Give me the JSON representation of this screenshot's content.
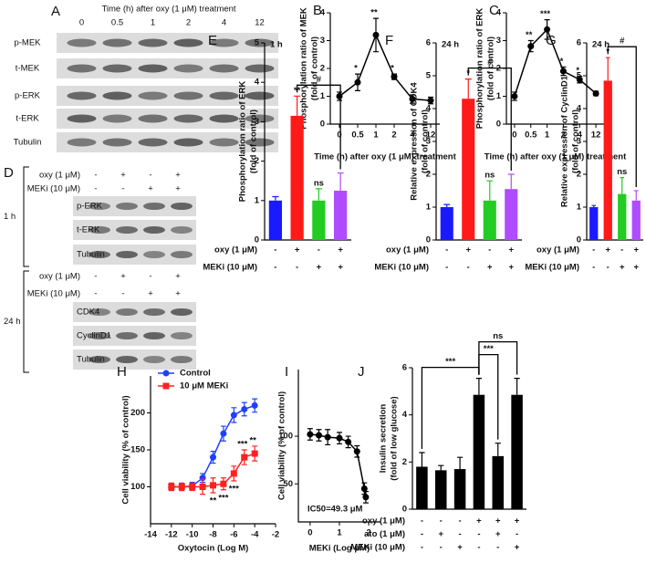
{
  "blots": [
    {
      "panel": "A",
      "header": "Time (h) after oxy (1 μM) treatment",
      "lanes": [
        "0",
        "0.5",
        "1",
        "2",
        "4",
        "12"
      ],
      "rows": [
        "p-MEK",
        "t-MEK",
        "p-ERK",
        "t-ERK",
        "Tubulin"
      ]
    },
    {
      "panel": "D",
      "sections": [
        {
          "time": "1 h",
          "treatments": [
            {
              "name": "oxy (1 μM)",
              "signs": [
                "-",
                "+",
                "-",
                "+"
              ]
            },
            {
              "name": "MEKi (10 μM)",
              "signs": [
                "-",
                "-",
                "+",
                "+"
              ]
            }
          ],
          "bands": [
            "p-ERK",
            "t-ERK",
            "Tubulin"
          ]
        },
        {
          "time": "24 h",
          "treatments": [
            {
              "name": "oxy (1 μM)",
              "signs": [
                "-",
                "+",
                "-",
                "+"
              ]
            },
            {
              "name": "MEKi (10 μM)",
              "signs": [
                "-",
                "-",
                "+",
                "+"
              ]
            }
          ],
          "bands": [
            "CDK4",
            "CyclinD1",
            "Tubulin"
          ]
        }
      ]
    }
  ],
  "chart_data": [
    {
      "panel": "B",
      "type": "line",
      "categories": [
        "0",
        "0.5",
        "1",
        "2",
        "4",
        "12"
      ],
      "values": [
        1,
        1.5,
        3.2,
        1.7,
        0.9,
        0.85
      ],
      "errors": [
        0.15,
        0.3,
        0.6,
        0.1,
        0.15,
        0.12
      ],
      "annotations": [
        null,
        "*",
        "**",
        "*",
        null,
        null
      ],
      "color": "#000000",
      "ylim": [
        0,
        4
      ],
      "yticks": [
        0,
        1,
        2,
        3,
        4
      ],
      "xlabel": "Time (h) after oxy (1 μM) treatment",
      "ylabel": [
        "Phosphorylation ratio of MEK",
        "(fold of control)"
      ]
    },
    {
      "panel": "C",
      "type": "line",
      "categories": [
        "0",
        "0.5",
        "1",
        "2",
        "4",
        "12"
      ],
      "values": [
        1,
        2.8,
        3.4,
        1.9,
        1.6,
        1.1
      ],
      "errors": [
        0.15,
        0.2,
        0.35,
        0.15,
        0.12,
        0.08
      ],
      "annotations": [
        null,
        "**",
        "***",
        "*",
        "*",
        null
      ],
      "color": "#000000",
      "ylim": [
        0,
        4
      ],
      "yticks": [
        0,
        1,
        2,
        3,
        4
      ],
      "xlabel": "Time (h) after oxy (1 μM) treatment",
      "ylabel": [
        "Phosphorylation ratio of ERK",
        "(fold of control)"
      ]
    },
    {
      "panel": "E",
      "type": "bar",
      "label": "1 h",
      "values": [
        1,
        3.15,
        1,
        1.25
      ],
      "errors": [
        0.1,
        0.5,
        0.3,
        0.45
      ],
      "colors": [
        "#1a1aff",
        "#ff1a1a",
        "#22cc22",
        "#b04cff"
      ],
      "annotations": [
        null,
        "**",
        "ns",
        null
      ],
      "brackets": [
        {
          "from": 1,
          "to": 3,
          "label": "#"
        }
      ],
      "treatments": [
        {
          "name": "oxy (1 μM)",
          "signs": [
            "-",
            "+",
            "-",
            "+"
          ]
        },
        {
          "name": "MEKi (10 μM)",
          "signs": [
            "-",
            "-",
            "+",
            "+"
          ]
        }
      ],
      "ylim": [
        0,
        5
      ],
      "yticks": [
        0,
        1,
        2,
        3,
        4,
        5
      ],
      "ylabel": [
        "Phosphorylation ratio of ERK",
        "(fold of control)"
      ]
    },
    {
      "panel": "F",
      "type": "bar",
      "label": "24 h",
      "values": [
        1,
        4.3,
        1.2,
        1.55
      ],
      "errors": [
        0.08,
        0.6,
        0.6,
        0.45
      ],
      "colors": [
        "#1a1aff",
        "#ff1a1a",
        "#22cc22",
        "#b04cff"
      ],
      "annotations": [
        null,
        "*",
        "ns",
        null
      ],
      "brackets": [
        {
          "from": 1,
          "to": 3,
          "label": "#"
        }
      ],
      "treatments": [
        {
          "name": "oxy (1 μM)",
          "signs": [
            "-",
            "+",
            "-",
            "+"
          ]
        },
        {
          "name": "MEKi (10 μM)",
          "signs": [
            "-",
            "-",
            "+",
            "+"
          ]
        }
      ],
      "ylim": [
        0,
        6
      ],
      "yticks": [
        0,
        1,
        2,
        3,
        4,
        5,
        6
      ],
      "ylabel": [
        "Relative expression of CDK4",
        "(fold of control)"
      ]
    },
    {
      "panel": "G",
      "type": "bar",
      "label": "24 h",
      "values": [
        1,
        4.85,
        1.4,
        1.2
      ],
      "errors": [
        0.05,
        0.7,
        0.5,
        0.3
      ],
      "colors": [
        "#1a1aff",
        "#ff1a1a",
        "#22cc22",
        "#b04cff"
      ],
      "annotations": [
        null,
        "*",
        "ns",
        null
      ],
      "brackets": [
        {
          "from": 1,
          "to": 3,
          "label": "#"
        }
      ],
      "treatments": [
        {
          "name": "oxy (1 μM)",
          "signs": [
            "-",
            "+",
            "-",
            "+"
          ]
        },
        {
          "name": "MEKi (10 μM)",
          "signs": [
            "-",
            "-",
            "+",
            "+"
          ]
        }
      ],
      "ylim": [
        0,
        6
      ],
      "yticks": [
        0,
        1,
        2,
        3,
        4,
        5,
        6
      ],
      "ylabel": [
        "Relative expression of CyclinD1",
        "(fold of control)"
      ]
    },
    {
      "panel": "H",
      "type": "line",
      "x": [
        -12,
        -11,
        -10,
        -9,
        -8,
        -7,
        -6,
        -5,
        -4
      ],
      "series": [
        {
          "name": "Control",
          "color": "#1f3fff",
          "marker": "circle",
          "values": [
            100,
            100,
            101,
            112,
            140,
            172,
            197,
            205,
            210
          ],
          "errors": [
            5,
            5,
            5,
            6,
            8,
            10,
            10,
            9,
            9
          ]
        },
        {
          "name": "10 μM MEKi",
          "color": "#ff2020",
          "marker": "square",
          "values": [
            100,
            100,
            100,
            100,
            102,
            104,
            118,
            140,
            145
          ],
          "errors": [
            5,
            5,
            5,
            10,
            10,
            8,
            10,
            10,
            10
          ],
          "annotations": [
            null,
            null,
            null,
            null,
            "**",
            "***",
            "***",
            "***",
            "**"
          ]
        }
      ],
      "xlim": [
        -14,
        -2
      ],
      "xticks": [
        -14,
        -12,
        -10,
        -8,
        -6,
        -4,
        -2
      ],
      "ylim": [
        50,
        250
      ],
      "yticks": [
        100,
        150,
        200
      ],
      "xlabel": "Oxytocin (Log M)",
      "ylabel": [
        "Cell viability (% of control)"
      ],
      "legend": "upper left"
    },
    {
      "panel": "I",
      "type": "scatter",
      "x": [
        0,
        0.3,
        0.6,
        1,
        1.3,
        1.6,
        1.85,
        1.9
      ],
      "values": [
        102,
        101,
        99,
        98,
        94,
        84,
        45,
        36
      ],
      "errors": [
        6,
        6,
        8,
        6,
        6,
        6,
        6,
        6
      ],
      "color": "#000000",
      "annotation": "IC50=49.3 μM",
      "xlim": [
        -0.4,
        2.4
      ],
      "xticks": [
        0,
        1,
        2
      ],
      "ylim": [
        10,
        170
      ],
      "yticks": [
        50,
        100
      ],
      "xlabel": "MEKi (Log μM)",
      "ylabel": [
        "Cell viability (% of control)"
      ]
    },
    {
      "panel": "J",
      "type": "bar",
      "values": [
        1.8,
        1.65,
        1.7,
        4.85,
        2.25,
        4.85
      ],
      "errors": [
        0.6,
        0.2,
        0.5,
        0.7,
        0.55,
        0.7
      ],
      "color": "#000000",
      "brackets": [
        {
          "from": 0,
          "to": 3,
          "label": "***"
        },
        {
          "from": 3,
          "to": 4,
          "label": "***"
        },
        {
          "from": 3,
          "to": 5,
          "label": "ns"
        }
      ],
      "treatments": [
        {
          "name": "oxy (1 μM)",
          "signs": [
            "-",
            "-",
            "-",
            "+",
            "+",
            "+"
          ]
        },
        {
          "name": "ato (1 μM)",
          "signs": [
            "-",
            "+",
            "-",
            "-",
            "+",
            "-"
          ]
        },
        {
          "name": "MEKi (10 μM)",
          "signs": [
            "-",
            "-",
            "+",
            "-",
            "-",
            "+"
          ]
        }
      ],
      "ylim": [
        0,
        6
      ],
      "yticks": [
        0,
        2,
        4,
        6
      ],
      "ylabel": [
        "Insulin secretion",
        "(fold of low glucose)"
      ]
    }
  ]
}
